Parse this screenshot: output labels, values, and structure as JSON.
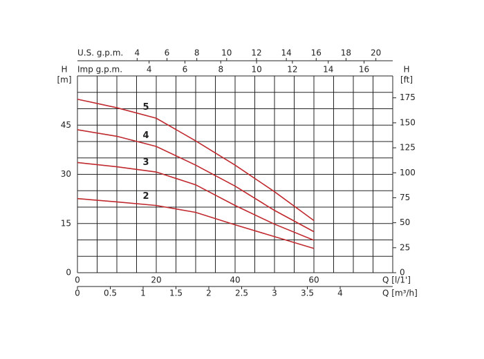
{
  "chart_data": {
    "type": "line",
    "x": [
      0,
      10,
      20,
      30,
      40,
      50,
      60
    ],
    "series": [
      {
        "name": "2",
        "color": "#c0282d",
        "values": [
          22.6,
          21.6,
          20.5,
          18.4,
          14.6,
          11,
          7.4
        ]
      },
      {
        "name": "3",
        "color": "#c0282d",
        "values": [
          33.6,
          32.3,
          30.7,
          26.8,
          20.5,
          14.8,
          9.9
        ]
      },
      {
        "name": "4",
        "color": "#c0282d",
        "values": [
          43.6,
          41.6,
          38.5,
          32.8,
          26.4,
          19,
          12.5
        ]
      },
      {
        "name": "5",
        "color": "#c0282d",
        "values": [
          52.9,
          50.3,
          47.1,
          40.2,
          32.8,
          24.7,
          15.9
        ]
      }
    ],
    "xlabel": "Q [l/1']",
    "xlim": [
      0,
      80
    ],
    "xticks": [
      0,
      20,
      40,
      60
    ],
    "xgrid": [
      0,
      5,
      10,
      15,
      20,
      25,
      30,
      35,
      40,
      45,
      50,
      55,
      60,
      65,
      70,
      75,
      80
    ],
    "ylabel": "H",
    "yunit": "[m]",
    "ylim": [
      0,
      60
    ],
    "yticks": [
      0,
      15,
      30,
      45
    ],
    "ygrid": [
      0,
      5,
      10,
      15,
      20,
      25,
      30,
      35,
      40,
      45,
      50,
      55,
      60
    ],
    "y2label": "H",
    "y2unit": "[ft]",
    "y2lim": [
      0,
      196.9
    ],
    "y2ticks": [
      0,
      25,
      50,
      75,
      100,
      125,
      150,
      175
    ],
    "secondary_x_axes": [
      {
        "label": "U.S. g.p.m.",
        "position": "top",
        "lim": [
          0,
          21.13
        ],
        "ticks": [
          4,
          6,
          8,
          10,
          12,
          14,
          16,
          18,
          20
        ]
      },
      {
        "label": "Imp g.p.m.",
        "position": "top",
        "lim": [
          0,
          17.6
        ],
        "ticks": [
          4,
          6,
          8,
          10,
          12,
          14,
          16
        ]
      },
      {
        "label": "Q [m³/h]",
        "position": "bottom",
        "lim": [
          0,
          4.8
        ],
        "ticks": [
          0,
          0.5,
          1,
          1.5,
          2,
          2.5,
          3,
          3.5,
          4
        ]
      }
    ],
    "grid": true
  }
}
